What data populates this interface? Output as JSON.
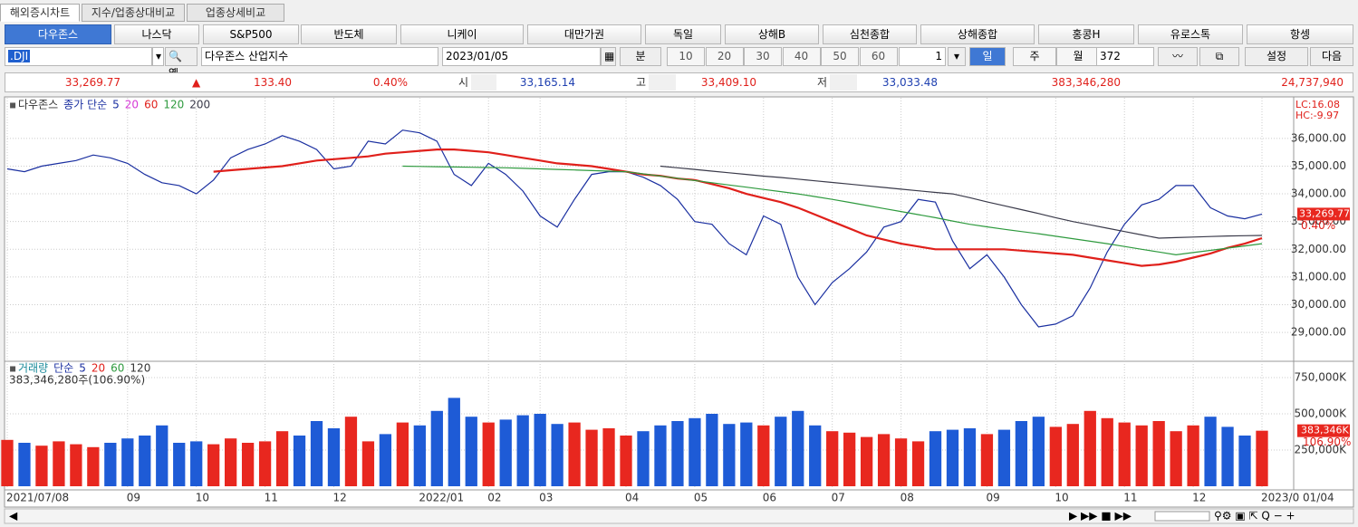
{
  "tabs": [
    "해외증시차트",
    "지수/업종상대비교",
    "업종상세비교"
  ],
  "indices": [
    "다우존스",
    "나스닥",
    "S&P500",
    "반도체",
    "니케이",
    "대만가권",
    "독일",
    "상해B",
    "심천종합",
    "상해종합",
    "홍콩H",
    "유로스톡",
    "항셍"
  ],
  "controls": {
    "code": ".DJI",
    "name": "다우존스 산업지수",
    "date": "2023/01/05",
    "unit": "분",
    "minutes": [
      "10",
      "20",
      "30",
      "40",
      "50",
      "60"
    ],
    "count_select": "1",
    "periods": [
      "일",
      "주",
      "월"
    ],
    "bars": "372",
    "settings": "설정",
    "next": "다음"
  },
  "quote": {
    "last": "33,269.77",
    "change": "133.40",
    "change_pct": "0.40%",
    "open_label": "시",
    "open": "33,165.14",
    "high_label": "고",
    "high": "33,409.10",
    "low_label": "저",
    "low": "33,033.48",
    "volume": "383,346,280",
    "amount": "24,737,940"
  },
  "chart_data": [
    {
      "type": "line",
      "indicator": "종가 단순",
      "extra_periods": [
        "5",
        "20"
      ],
      "categories": [
        "2021/07/08",
        null,
        null,
        null,
        null,
        null,
        null,
        "09",
        null,
        null,
        null,
        "10",
        null,
        null,
        null,
        "11",
        null,
        null,
        null,
        "12",
        null,
        null,
        null,
        null,
        "2022/01",
        null,
        null,
        null,
        "02",
        null,
        null,
        "03",
        null,
        null,
        null,
        null,
        "04",
        null,
        null,
        null,
        "05",
        null,
        null,
        null,
        "06",
        null,
        null,
        null,
        "07",
        null,
        null,
        null,
        "08",
        null,
        null,
        null,
        null,
        "09",
        null,
        null,
        null,
        "10",
        null,
        null,
        null,
        "11",
        null,
        null,
        null,
        "12",
        null,
        null,
        null,
        "2023/0"
      ],
      "current_date": "01/04",
      "series": [
        {
          "name": "다우존스",
          "color": "#1a2fa0",
          "values": [
            34900,
            34800,
            35000,
            35100,
            35200,
            35400,
            35300,
            35100,
            34700,
            34400,
            34300,
            34000,
            34500,
            35300,
            35600,
            35800,
            36100,
            35900,
            35600,
            34900,
            35000,
            35900,
            35800,
            36300,
            36200,
            35900,
            34700,
            34300,
            35100,
            34700,
            34100,
            33200,
            32800,
            33800,
            34700,
            34800,
            34800,
            34600,
            34300,
            33800,
            33000,
            32900,
            32200,
            31800,
            33200,
            32900,
            31000,
            30000,
            30800,
            31300,
            31900,
            32800,
            33000,
            33800,
            33700,
            32300,
            31300,
            31800,
            31000,
            30000,
            29200,
            29300,
            29600,
            30600,
            31900,
            32900,
            33600,
            33800,
            34300,
            34300,
            33500,
            33200,
            33100,
            33269.77
          ]
        },
        {
          "name": "60",
          "color": "#e0201b",
          "values": [
            null,
            null,
            null,
            null,
            null,
            null,
            null,
            null,
            null,
            null,
            null,
            null,
            34800,
            34850,
            34900,
            34950,
            35000,
            35100,
            35200,
            35250,
            35300,
            35350,
            35450,
            35500,
            35550,
            35600,
            35600,
            35550,
            35500,
            35400,
            35300,
            35200,
            35100,
            35050,
            35000,
            34900,
            34800,
            34700,
            34650,
            34550,
            34500,
            34350,
            34200,
            34000,
            33850,
            33700,
            33500,
            33250,
            33000,
            32750,
            32500,
            32350,
            32200,
            32100,
            32000,
            32000,
            32000,
            32000,
            32000,
            31950,
            31900,
            31850,
            31800,
            31700,
            31600,
            31500,
            31400,
            31450,
            31550,
            31700,
            31850,
            32050,
            32200,
            32400
          ]
        },
        {
          "name": "120",
          "color": "#2e9a3e",
          "values": [
            null,
            null,
            null,
            null,
            null,
            null,
            null,
            null,
            null,
            null,
            null,
            null,
            null,
            null,
            null,
            null,
            null,
            null,
            null,
            null,
            null,
            null,
            null,
            35000,
            34990,
            34980,
            34970,
            34960,
            34950,
            34940,
            34920,
            34900,
            34880,
            34860,
            34840,
            34820,
            34800,
            34720,
            34640,
            34560,
            34480,
            34400,
            34320,
            34240,
            34160,
            34080,
            34000,
            33900,
            33800,
            33690,
            33580,
            33470,
            33360,
            33250,
            33140,
            33020,
            32900,
            32810,
            32720,
            32640,
            32560,
            32470,
            32380,
            32290,
            32200,
            32100,
            32000,
            31900,
            31800,
            31880,
            31960,
            32040,
            32120,
            32200
          ]
        },
        {
          "name": "200",
          "color": "#3a3a4a",
          "values": [
            null,
            null,
            null,
            null,
            null,
            null,
            null,
            null,
            null,
            null,
            null,
            null,
            null,
            null,
            null,
            null,
            null,
            null,
            null,
            null,
            null,
            null,
            null,
            null,
            null,
            null,
            null,
            null,
            null,
            null,
            null,
            null,
            null,
            null,
            null,
            null,
            null,
            null,
            35000,
            34940,
            34880,
            34820,
            34760,
            34700,
            34640,
            34590,
            34530,
            34470,
            34410,
            34350,
            34290,
            34230,
            34170,
            34110,
            34050,
            34000,
            33860,
            33710,
            33570,
            33430,
            33290,
            33140,
            33000,
            32880,
            32760,
            32640,
            32520,
            32400,
            32420,
            32440,
            32460,
            32480,
            32490,
            32500
          ]
        }
      ],
      "ylim": [
        27990,
        37400
      ],
      "yticks": [
        {
          "value": 29000,
          "label": "29,000.00"
        },
        {
          "value": 30000,
          "label": "30,000.00"
        },
        {
          "value": 31000,
          "label": "31,000.00"
        },
        {
          "value": 32000,
          "label": "32,000.00"
        },
        {
          "value": 33000,
          "label": "33,000.00"
        },
        {
          "value": 34000,
          "label": "34,000.00"
        },
        {
          "value": 35000,
          "label": "35,000.00"
        },
        {
          "value": 36000,
          "label": "36,000.00"
        }
      ],
      "grid": true,
      "right_notes": [
        "LC:16.08",
        "HC:-9.97"
      ],
      "last_tag": "33,269.77",
      "last_change": "0.40%"
    },
    {
      "type": "bar",
      "indicator": "단순",
      "extra_periods": [
        "5",
        "20",
        "60",
        "120"
      ],
      "series": [
        {
          "name": "거래량",
          "values": [
            320000,
            300000,
            280000,
            310000,
            290000,
            270000,
            300000,
            330000,
            350000,
            420000,
            300000,
            310000,
            290000,
            330000,
            300000,
            310000,
            380000,
            350000,
            450000,
            400000,
            480000,
            310000,
            360000,
            440000,
            420000,
            520000,
            610000,
            480000,
            440000,
            460000,
            490000,
            500000,
            430000,
            440000,
            390000,
            400000,
            350000,
            380000,
            420000,
            450000,
            470000,
            500000,
            430000,
            440000,
            420000,
            480000,
            520000,
            420000,
            380000,
            370000,
            340000,
            360000,
            330000,
            310000,
            380000,
            390000,
            400000,
            360000,
            390000,
            450000,
            480000,
            410000,
            430000,
            520000,
            470000,
            440000,
            420000,
            450000,
            380000,
            420000,
            480000,
            410000,
            350000,
            383346.28
          ]
        }
      ],
      "up_color": "#e8271f",
      "down_color": "#1e5bd6",
      "ylim": [
        0,
        843750
      ],
      "yticks": [
        {
          "value": 250000,
          "label": "250,000K"
        },
        {
          "value": 500000,
          "label": "500,000K"
        },
        {
          "value": 750000,
          "label": "750,000K"
        }
      ],
      "grid": true,
      "info": "383,346,280주(106.90%)",
      "last_tag": "383,346K",
      "last_change": "106.90%"
    }
  ]
}
